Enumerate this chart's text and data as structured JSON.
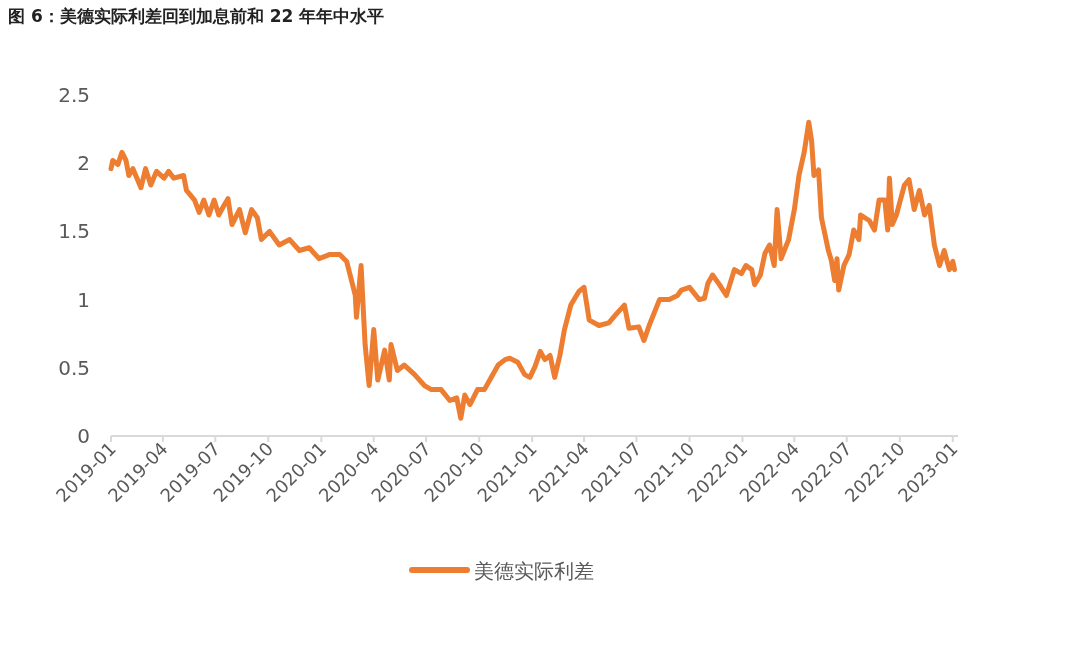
{
  "chart_data": {
    "type": "line",
    "title": "图 6：美德实际利差回到加息前和 22 年年中水平",
    "x": [
      "2019-01-01",
      "2019-01-04",
      "2019-01-13",
      "2019-01-20",
      "2019-01-27",
      "2019-02-01",
      "2019-02-08",
      "2019-02-22",
      "2019-03-02",
      "2019-03-11",
      "2019-03-21",
      "2019-04-03",
      "2019-04-11",
      "2019-04-20",
      "2019-05-07",
      "2019-05-12",
      "2019-05-26",
      "2019-06-03",
      "2019-06-11",
      "2019-06-20",
      "2019-06-29",
      "2019-07-07",
      "2019-07-16",
      "2019-07-23",
      "2019-07-30",
      "2019-08-12",
      "2019-08-22",
      "2019-09-02",
      "2019-09-12",
      "2019-09-19",
      "2019-10-03",
      "2019-10-20",
      "2019-11-07",
      "2019-11-24",
      "2019-12-11",
      "2019-12-28",
      "2020-01-15",
      "2020-02-02",
      "2020-02-14",
      "2020-02-23",
      "2020-02-29",
      "2020-03-02",
      "2020-03-10",
      "2020-03-13",
      "2020-03-17",
      "2020-03-24",
      "2020-04-01",
      "2020-04-08",
      "2020-04-20",
      "2020-04-28",
      "2020-05-01",
      "2020-05-12",
      "2020-05-24",
      "2020-06-11",
      "2020-06-28",
      "2020-07-10",
      "2020-07-27",
      "2020-08-11",
      "2020-08-23",
      "2020-08-30",
      "2020-09-06",
      "2020-09-15",
      "2020-09-28",
      "2020-10-10",
      "2020-10-22",
      "2020-11-03",
      "2020-11-15",
      "2020-11-23",
      "2020-12-07",
      "2020-12-19",
      "2020-12-28",
      "2021-01-06",
      "2021-01-15",
      "2021-01-23",
      "2021-02-01",
      "2021-02-09",
      "2021-02-18",
      "2021-02-26",
      "2021-03-09",
      "2021-03-23",
      "2021-04-01",
      "2021-04-10",
      "2021-04-27",
      "2021-05-14",
      "2021-05-26",
      "2021-06-10",
      "2021-06-18",
      "2021-07-05",
      "2021-07-14",
      "2021-07-23",
      "2021-08-10",
      "2021-08-27",
      "2021-09-10",
      "2021-09-17",
      "2021-10-01",
      "2021-10-18",
      "2021-10-27",
      "2021-11-02",
      "2021-11-10",
      "2021-11-22",
      "2021-12-04",
      "2021-12-18",
      "2021-12-30",
      "2022-01-07",
      "2022-01-17",
      "2022-01-22",
      "2022-02-01",
      "2022-02-09",
      "2022-02-17",
      "2022-02-25",
      "2022-03-02",
      "2022-03-09",
      "2022-03-22",
      "2022-04-01",
      "2022-04-09",
      "2022-04-18",
      "2022-04-26",
      "2022-05-01",
      "2022-05-05",
      "2022-05-13",
      "2022-05-18",
      "2022-05-30",
      "2022-06-04",
      "2022-06-10",
      "2022-06-14",
      "2022-06-17",
      "2022-06-26",
      "2022-07-05",
      "2022-07-13",
      "2022-07-22",
      "2022-07-25",
      "2022-08-09",
      "2022-08-18",
      "2022-08-26",
      "2022-09-05",
      "2022-09-10",
      "2022-09-13",
      "2022-09-18",
      "2022-09-25",
      "2022-10-09",
      "2022-10-17",
      "2022-10-26",
      "2022-11-04",
      "2022-11-13",
      "2022-11-21",
      "2022-11-30",
      "2022-12-09",
      "2022-12-17",
      "2022-12-26",
      "2023-01-01",
      "2023-01-04"
    ],
    "series": [
      {
        "name": "美德实际利差",
        "color": "#ed7d31",
        "values": [
          1.96,
          2.02,
          1.99,
          2.08,
          2.02,
          1.91,
          1.96,
          1.82,
          1.96,
          1.84,
          1.94,
          1.89,
          1.94,
          1.89,
          1.91,
          1.8,
          1.73,
          1.64,
          1.73,
          1.62,
          1.73,
          1.62,
          1.69,
          1.74,
          1.55,
          1.66,
          1.49,
          1.66,
          1.6,
          1.44,
          1.5,
          1.4,
          1.44,
          1.36,
          1.38,
          1.3,
          1.33,
          1.33,
          1.28,
          1.13,
          1.03,
          0.87,
          1.25,
          1.0,
          0.67,
          0.37,
          0.78,
          0.41,
          0.63,
          0.41,
          0.67,
          0.48,
          0.52,
          0.45,
          0.37,
          0.34,
          0.34,
          0.26,
          0.28,
          0.13,
          0.3,
          0.23,
          0.34,
          0.34,
          0.43,
          0.52,
          0.56,
          0.57,
          0.54,
          0.45,
          0.43,
          0.51,
          0.62,
          0.56,
          0.59,
          0.43,
          0.59,
          0.78,
          0.96,
          1.06,
          1.09,
          0.85,
          0.81,
          0.83,
          0.89,
          0.96,
          0.79,
          0.8,
          0.7,
          0.81,
          1.0,
          1.0,
          1.03,
          1.07,
          1.09,
          1.0,
          1.01,
          1.12,
          1.18,
          1.11,
          1.03,
          1.22,
          1.19,
          1.25,
          1.22,
          1.11,
          1.18,
          1.34,
          1.4,
          1.25,
          1.66,
          1.3,
          1.44,
          1.66,
          1.91,
          2.08,
          2.3,
          2.16,
          1.91,
          1.95,
          1.6,
          1.36,
          1.29,
          1.14,
          1.3,
          1.07,
          1.25,
          1.33,
          1.51,
          1.44,
          1.62,
          1.58,
          1.51,
          1.73,
          1.73,
          1.51,
          1.89,
          1.55,
          1.62,
          1.84,
          1.88,
          1.66,
          1.8,
          1.62,
          1.69,
          1.4,
          1.25,
          1.36,
          1.22,
          1.28,
          1.22
        ]
      }
    ],
    "xlim": [
      "2019-01-01",
      "2023-01-10"
    ],
    "xticks": [
      {
        "value": "2019-01-01",
        "label": "2019-01"
      },
      {
        "value": "2019-04-01",
        "label": "2019-04"
      },
      {
        "value": "2019-07-01",
        "label": "2019-07"
      },
      {
        "value": "2019-10-01",
        "label": "2019-10"
      },
      {
        "value": "2020-01-01",
        "label": "2020-01"
      },
      {
        "value": "2020-04-01",
        "label": "2020-04"
      },
      {
        "value": "2020-07-01",
        "label": "2020-07"
      },
      {
        "value": "2020-10-01",
        "label": "2020-10"
      },
      {
        "value": "2021-01-01",
        "label": "2021-01"
      },
      {
        "value": "2021-04-01",
        "label": "2021-04"
      },
      {
        "value": "2021-07-01",
        "label": "2021-07"
      },
      {
        "value": "2021-10-01",
        "label": "2021-10"
      },
      {
        "value": "2022-01-01",
        "label": "2022-01"
      },
      {
        "value": "2022-04-01",
        "label": "2022-04"
      },
      {
        "value": "2022-07-01",
        "label": "2022-07"
      },
      {
        "value": "2022-10-01",
        "label": "2022-10"
      },
      {
        "value": "2023-01-01",
        "label": "2023-01"
      }
    ],
    "ylim": [
      0,
      2.5
    ],
    "yticks": [
      0,
      0.5,
      1,
      1.5,
      2,
      2.5
    ],
    "grid": false,
    "legend": "bottom",
    "marker": "none",
    "line_style": "solid"
  }
}
